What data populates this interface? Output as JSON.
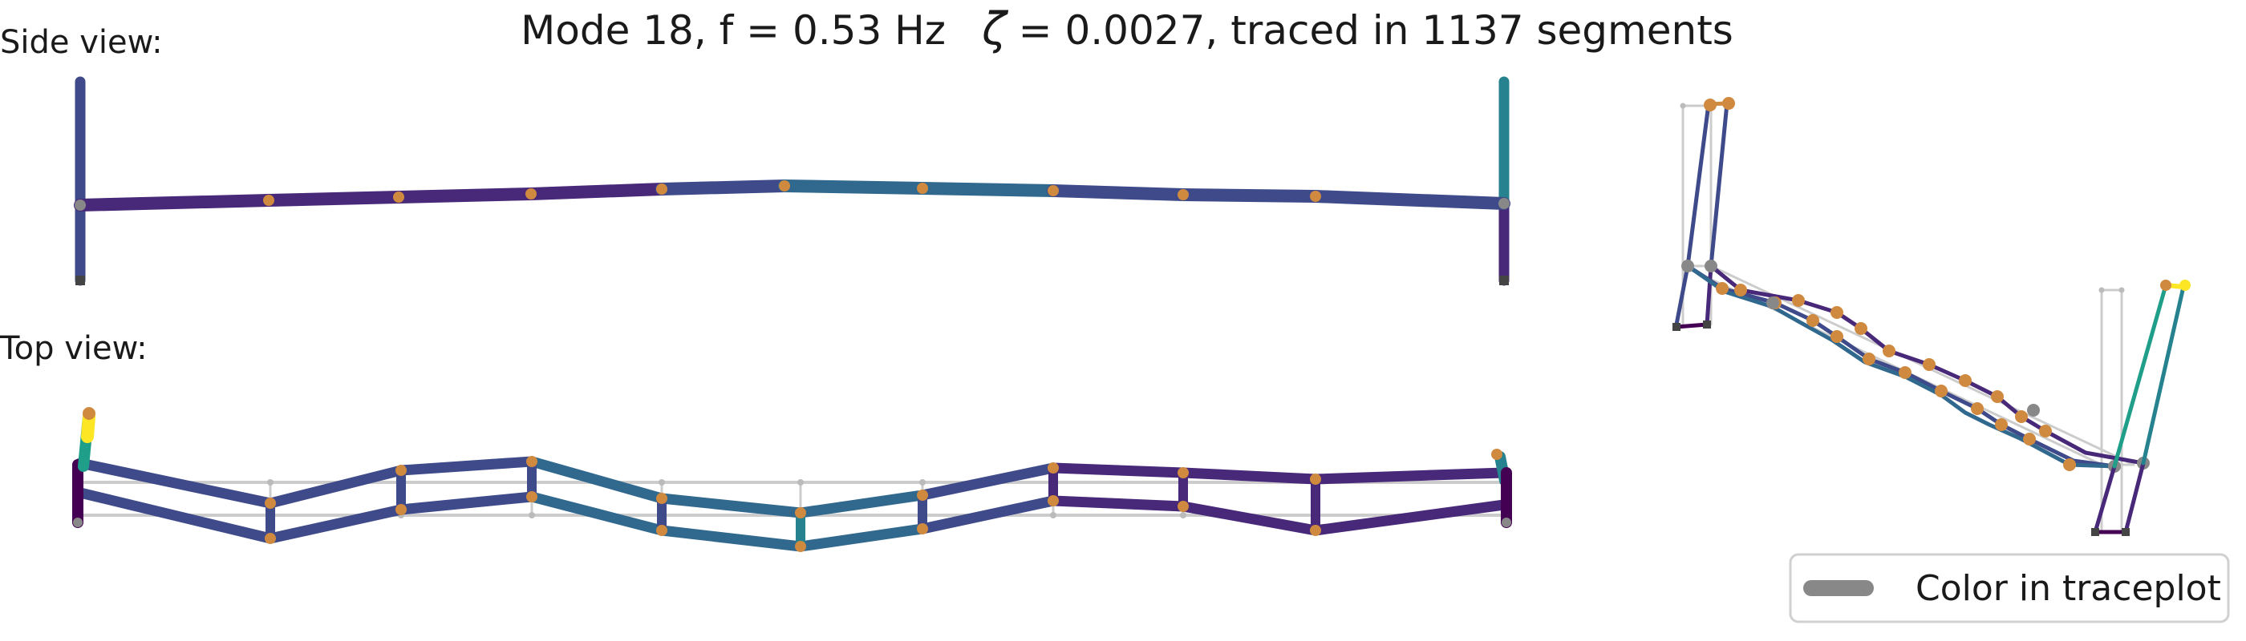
{
  "title": {
    "prefix": "Mode 18, f = 0.53 Hz",
    "zeta_symbol": "ζ",
    "suffix": "= 0.0027,  traced in 1137 segments"
  },
  "views": {
    "side": "Side view:",
    "top": "Top view:"
  },
  "legend": {
    "label": "Color in traceplot",
    "swatch_color": "#888888"
  },
  "colors": {
    "reference": "#cccccc",
    "node": "#d08a40",
    "support": "#444444",
    "mode_node": "#888888",
    "viridis": [
      "#440154",
      "#482878",
      "#3e4a89",
      "#31688e",
      "#26828e",
      "#1f9e89",
      "#35b779",
      "#6ece58",
      "#b5de2b",
      "#fde725"
    ]
  }
}
